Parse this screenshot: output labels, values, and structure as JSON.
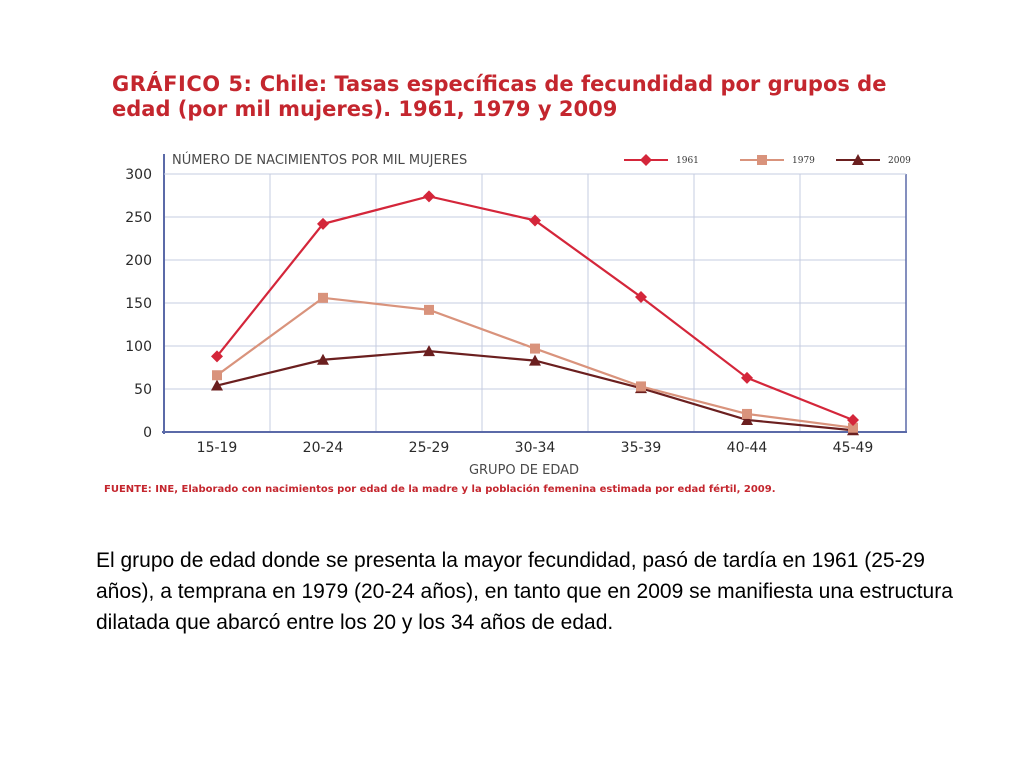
{
  "title": {
    "lead": "GRÁFICO 5:",
    "rest": " Chile: Tasas específicas de fecundidad por grupos de edad (por mil mujeres). 1961, 1979 y 2009"
  },
  "colors": {
    "s1961": "#d4263a",
    "s1979": "#d9937c",
    "s2009": "#6b1f1f",
    "grid": "#c5cce0",
    "frame": "#5b6aa8",
    "title": "#c4262e"
  },
  "chart_data": {
    "type": "line",
    "title": "",
    "ylabel": "NÚMERO DE NACIMIENTOS POR MIL MUJERES",
    "xlabel": "GRUPO DE EDAD",
    "ylim": [
      0,
      300
    ],
    "yticks": [
      "0",
      "50",
      "100",
      "150",
      "200",
      "250",
      "300"
    ],
    "yticks_values": [
      0,
      50,
      100,
      150,
      200,
      250,
      300
    ],
    "categories": [
      "15-19",
      "20-24",
      "25-29",
      "30-34",
      "35-39",
      "40-44",
      "45-49"
    ],
    "grid": true,
    "legend": "top-right",
    "series": [
      {
        "name": "1961",
        "marker": "diamond",
        "values": [
          88,
          242,
          274,
          246,
          157,
          63,
          14
        ]
      },
      {
        "name": "1979",
        "marker": "square",
        "values": [
          66,
          156,
          142,
          97,
          53,
          21,
          5
        ]
      },
      {
        "name": "2009",
        "marker": "triangle",
        "values": [
          54,
          84,
          94,
          83,
          51,
          14,
          2
        ]
      }
    ]
  },
  "source": "FUENTE: INE, Elaborado con nacimientos por edad de la madre y la población femenina estimada por edad fértil, 2009.",
  "caption": "El grupo de edad donde se presenta la mayor fecundidad, pasó de tardía en 1961 (25-29 años), a temprana en 1979 (20-24 años), en tanto que en 2009 se manifiesta una estructura dilatada que abarcó entre los 20 y los 34 años de edad."
}
